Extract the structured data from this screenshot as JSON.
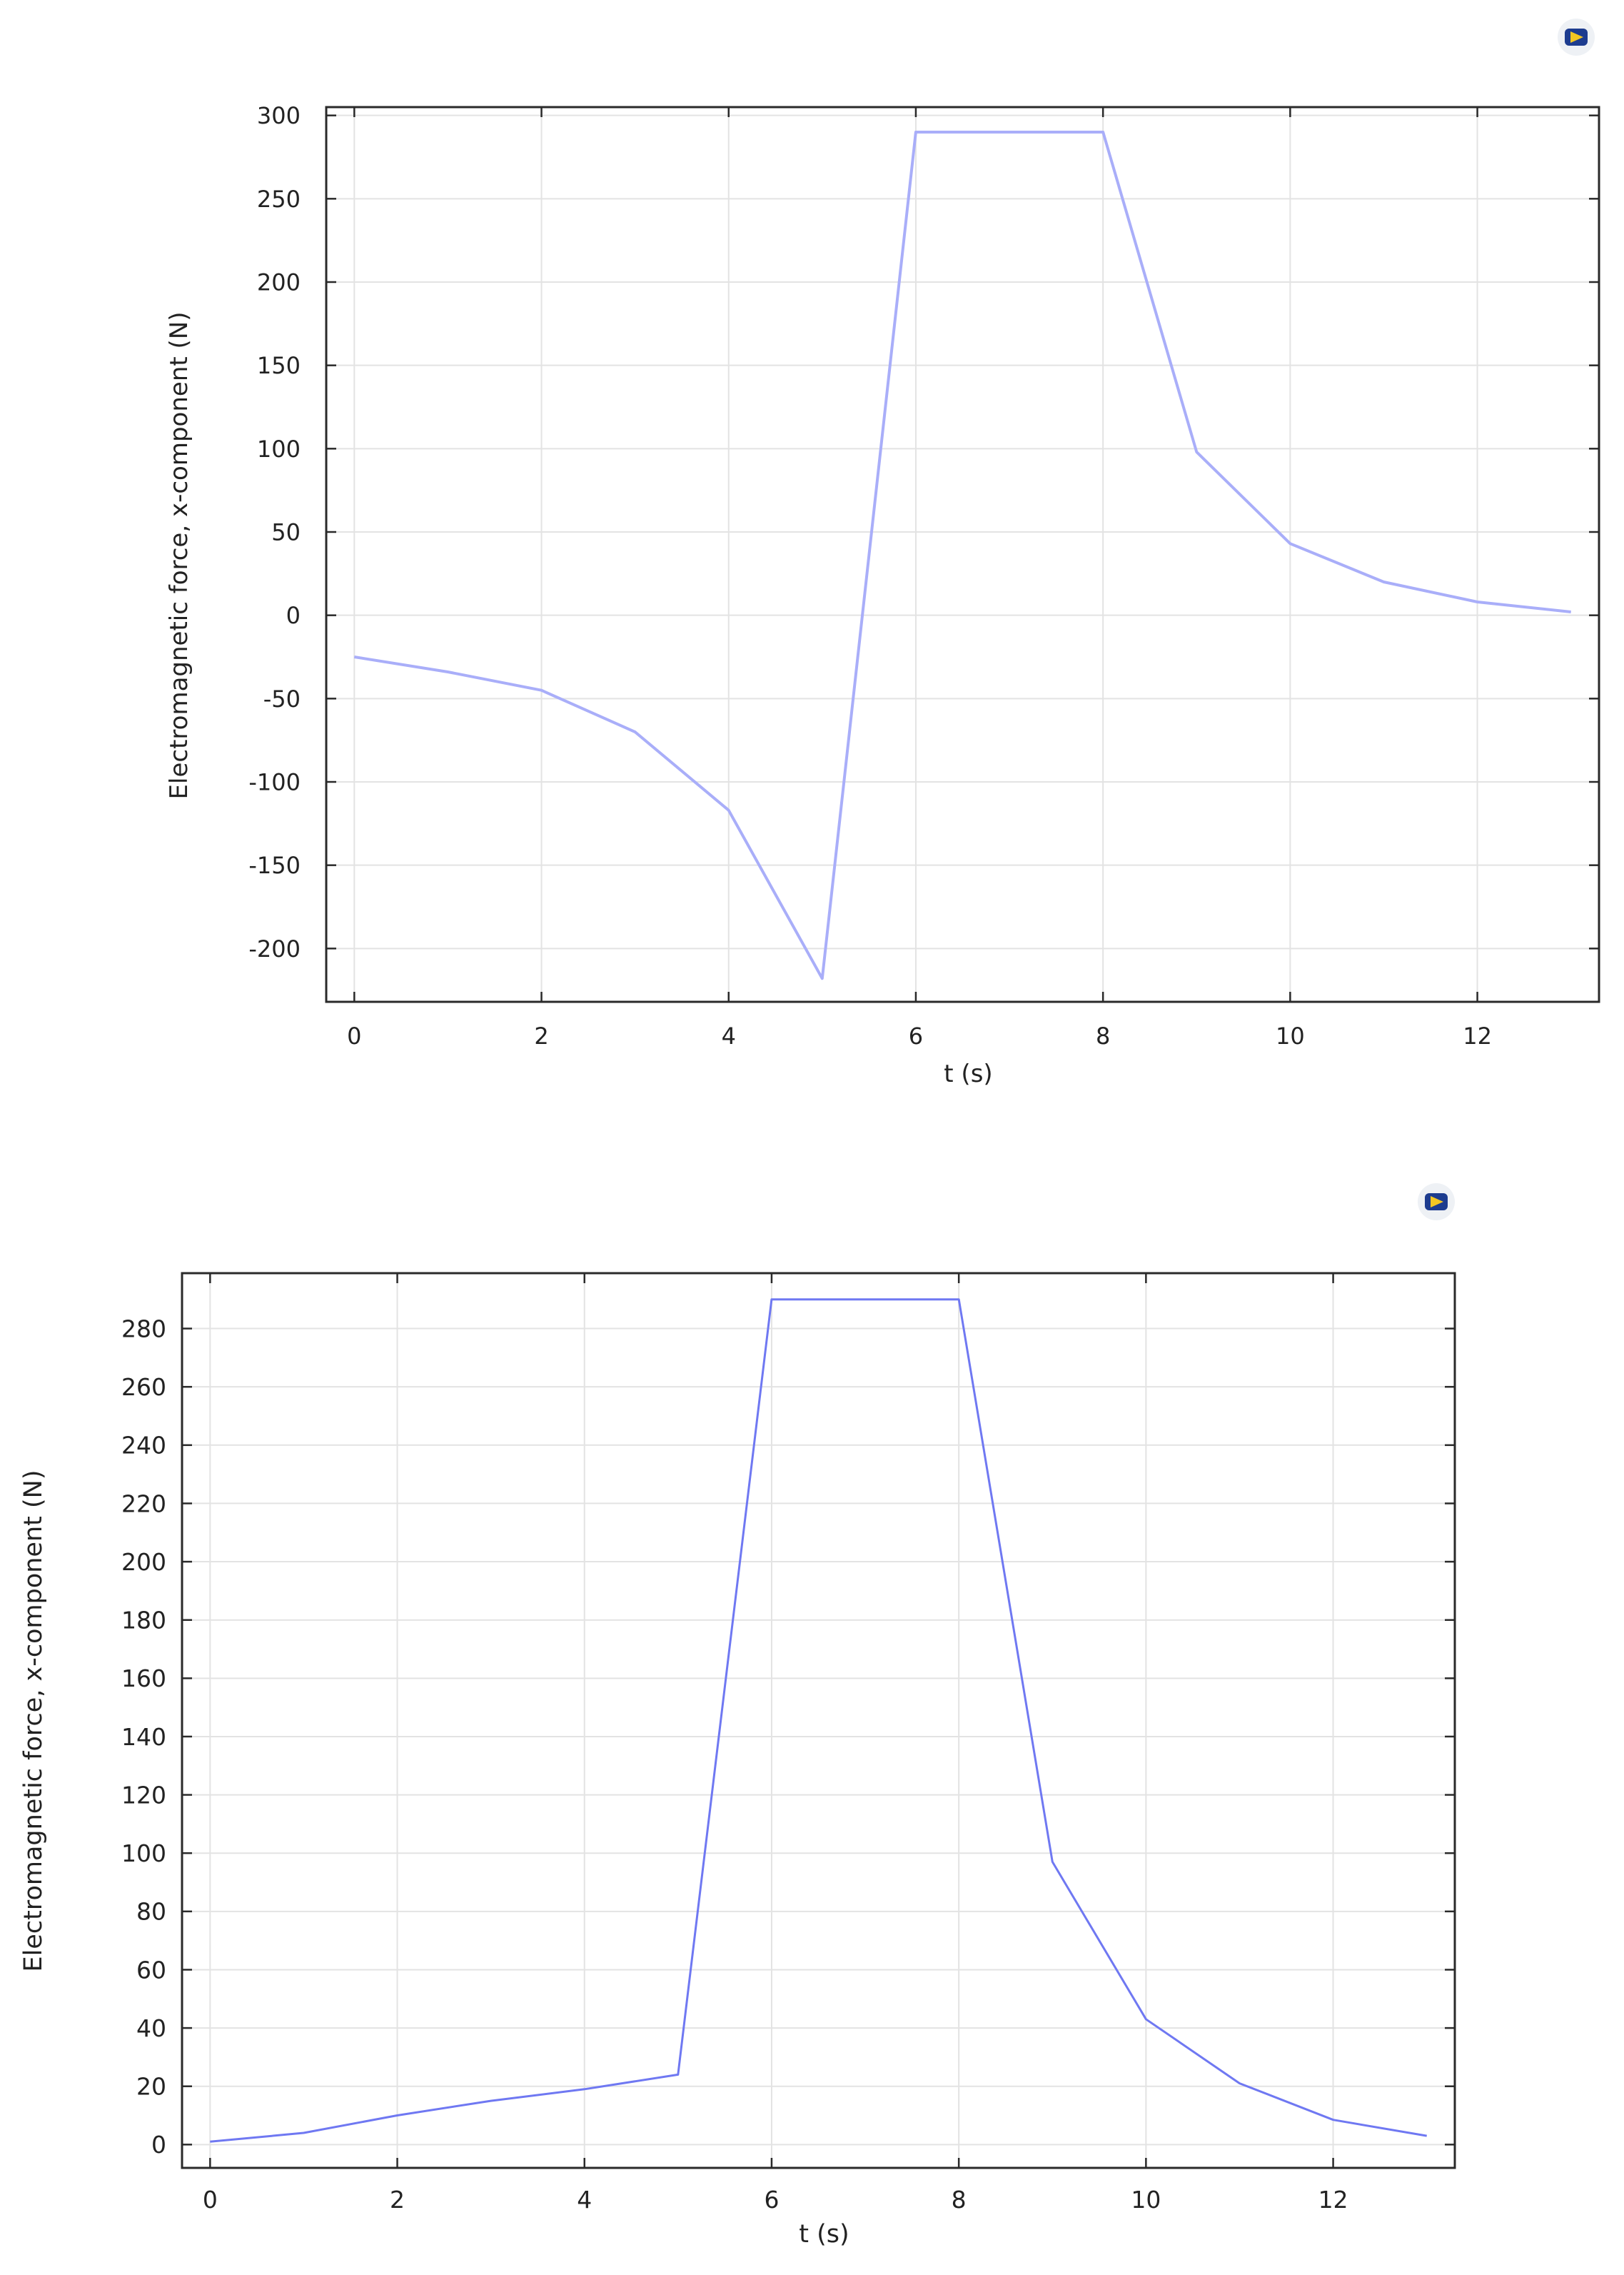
{
  "logo_icon": "comsol-logo-icon",
  "chart_data": [
    {
      "type": "line",
      "title": "",
      "xlabel": "t (s)",
      "ylabel": "Electromagnetic force, x-component (N)",
      "xlim": [
        -0.3,
        13.3
      ],
      "ylim": [
        -232,
        305
      ],
      "grid": true,
      "color": "#a9aef9",
      "xticks": [
        0,
        2,
        4,
        6,
        8,
        10,
        12
      ],
      "yticks": [
        -200,
        -150,
        -100,
        -50,
        0,
        50,
        100,
        150,
        200,
        250,
        300
      ],
      "series": [
        {
          "x": [
            0,
            1,
            2,
            3,
            4,
            5,
            6,
            7,
            8,
            9,
            10,
            11,
            12,
            13
          ],
          "y": [
            -25,
            -34,
            -45,
            -70,
            -117,
            -218,
            290,
            290,
            290,
            98,
            43,
            20,
            8,
            2
          ]
        }
      ]
    },
    {
      "type": "line",
      "title": "",
      "xlabel": "t (s)",
      "ylabel": "Electromagnetic force, x-component (N)",
      "xlim": [
        -0.3,
        13.3
      ],
      "ylim": [
        -8,
        299
      ],
      "grid": true,
      "color": "#6f78f2",
      "xticks": [
        0,
        2,
        4,
        6,
        8,
        10,
        12
      ],
      "yticks": [
        0,
        20,
        40,
        60,
        80,
        100,
        120,
        140,
        160,
        180,
        200,
        220,
        240,
        260,
        280
      ],
      "series": [
        {
          "x": [
            0,
            1,
            2,
            3,
            4,
            5,
            6,
            7,
            8,
            9,
            10,
            11,
            12,
            13
          ],
          "y": [
            1,
            4,
            10,
            15,
            19,
            24,
            290,
            290,
            290,
            97,
            43,
            21,
            8.5,
            3
          ]
        }
      ]
    }
  ]
}
